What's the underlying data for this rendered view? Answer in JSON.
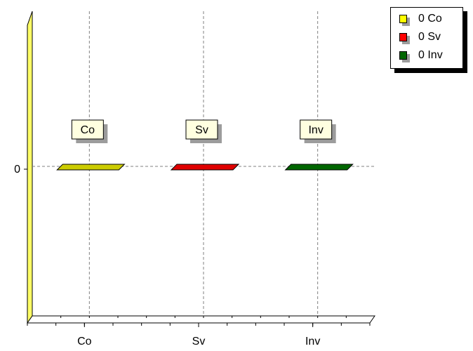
{
  "chart_data": {
    "type": "bar",
    "categories": [
      "Co",
      "Sv",
      "Inv"
    ],
    "values": [
      0,
      0,
      0
    ],
    "colors": [
      "#cccc00",
      "#e00000",
      "#006600"
    ],
    "y_tick_labels": [
      "0"
    ],
    "bar_labels": [
      "Co",
      "Sv",
      "Inv"
    ],
    "legend": [
      "0 Co",
      "0 Sv",
      "0 Inv"
    ],
    "legend_position": "top-right",
    "grid": true,
    "three_d": true,
    "back_wall_color": "#ffff66"
  }
}
